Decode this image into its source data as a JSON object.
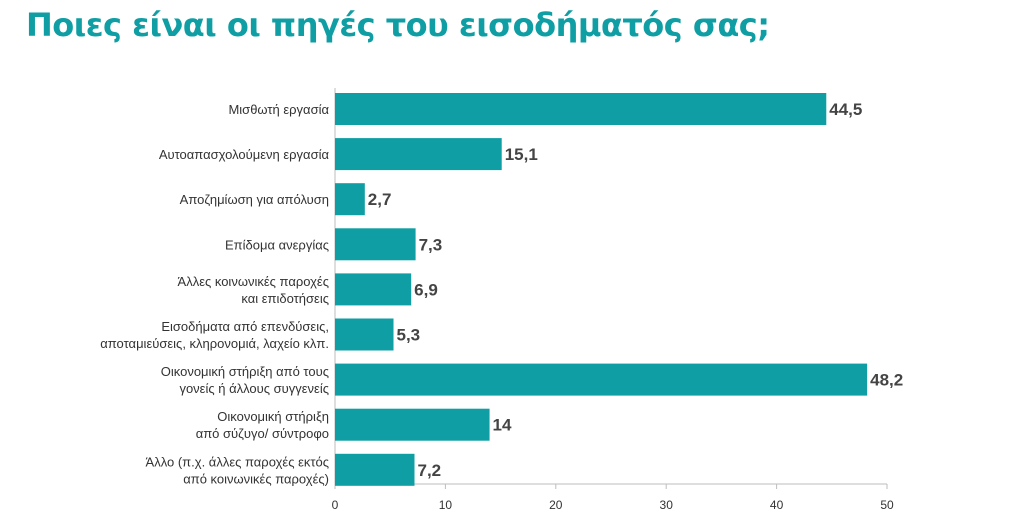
{
  "title": "Ποιες είναι οι πηγές του εισοδήματός σας;",
  "colors": {
    "title": "#0e9ea3",
    "bar": "#0e9ea3",
    "axis": "#bdbdbd"
  },
  "chart_data": {
    "type": "bar",
    "orientation": "horizontal",
    "title": "Ποιες είναι οι πηγές του εισοδήματός σας;",
    "xlabel": "",
    "ylabel": "",
    "xlim": [
      0,
      50
    ],
    "xticks": [
      0,
      10,
      20,
      30,
      40,
      50
    ],
    "grid": false,
    "categories": [
      [
        "Μισθωτή εργασία"
      ],
      [
        "Αυτοαπασχολούμενη εργασία"
      ],
      [
        "Αποζημίωση για απόλυση"
      ],
      [
        "Επίδομα ανεργίας"
      ],
      [
        "Άλλες κοινωνικές παροχές",
        "και επιδοτήσεις"
      ],
      [
        "Εισοδήματα από επενδύσεις,",
        "αποταμιεύσεις, κληρονομιά, λαχείο κλπ."
      ],
      [
        "Οικονομική στήριξη από τους",
        "γονείς ή άλλους συγγενείς"
      ],
      [
        "Οικονομική στήριξη",
        "από σύζυγο/ σύντροφο"
      ],
      [
        "Άλλο (π.χ. άλλες παροχές εκτός",
        "από κοινωνικές παροχές)"
      ]
    ],
    "values": [
      44.5,
      15.1,
      2.7,
      7.3,
      6.9,
      5.3,
      48.2,
      14,
      7.2
    ],
    "value_labels": [
      "44,5",
      "15,1",
      "2,7",
      "7,3",
      "6,9",
      "5,3",
      "48,2",
      "14",
      "7,2"
    ]
  }
}
